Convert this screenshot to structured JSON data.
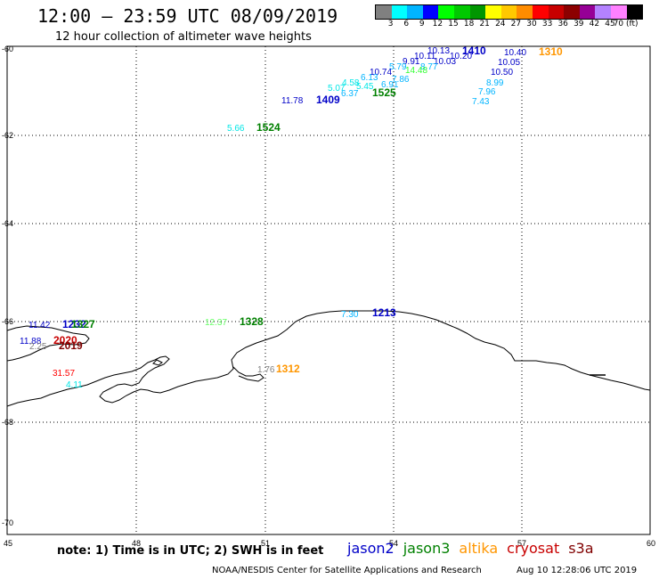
{
  "header": {
    "title": "12:00 – 23:59 UTC 08/09/2019",
    "subtitle": "12 hour collection of altimeter wave heights"
  },
  "scale": {
    "colors": [
      "#808080",
      "#00ffff",
      "#00b4ff",
      "#0000ff",
      "#00ff00",
      "#00c800",
      "#009600",
      "#ffff00",
      "#ffc800",
      "#ff8c00",
      "#ff0000",
      "#c80000",
      "#8c0000",
      "#960096",
      "#b482ff",
      "#ff80ff",
      "#000000"
    ],
    "labels": [
      "3",
      "6",
      "9",
      "12",
      "15",
      "18",
      "21",
      "24",
      "27",
      "30",
      "33",
      "36",
      "39",
      "42",
      "45",
      "70 (ft)"
    ]
  },
  "axes": {
    "lat_ticks": [
      "-60",
      "-62",
      "-64",
      "-66",
      "-68",
      "-70"
    ],
    "lon_ticks": [
      "45",
      "48",
      "51",
      "54",
      "57",
      "60"
    ]
  },
  "satellite_colors": {
    "jason2": "#0000c8",
    "jason3": "#008000",
    "altika": "#ff9600",
    "cryosat": "#c80000",
    "s3a": "#800000"
  },
  "observations": [
    {
      "value": "10.13",
      "color": "#0000c8"
    },
    {
      "value": "10.11",
      "color": "#0000c8"
    },
    {
      "value": "10.20",
      "color": "#0000c8"
    },
    {
      "value": "9.91",
      "color": "#0000c8"
    },
    {
      "value": "10.03",
      "color": "#0000c8"
    },
    {
      "value": "5.79",
      "color": "#00b4ff"
    },
    {
      "value": "8.77",
      "color": "#00b4ff"
    },
    {
      "value": "10.74",
      "color": "#0000c8"
    },
    {
      "value": "14.48",
      "color": "#33ff33"
    },
    {
      "value": "6.13",
      "color": "#00b4ff"
    },
    {
      "value": "7.86",
      "color": "#00b4ff"
    },
    {
      "value": "4.58",
      "color": "#00e6e6"
    },
    {
      "value": "6.91",
      "color": "#00b4ff"
    },
    {
      "value": "5.07",
      "color": "#00e6e6"
    },
    {
      "value": "5.45",
      "color": "#00e6e6"
    },
    {
      "value": "6.37",
      "color": "#00b4ff"
    },
    {
      "value": "11.78",
      "color": "#0000c8"
    },
    {
      "value": "10.40",
      "color": "#0000c8"
    },
    {
      "value": "10.05",
      "color": "#0000c8"
    },
    {
      "value": "10.50",
      "color": "#0000c8"
    },
    {
      "value": "8.99",
      "color": "#00b4ff"
    },
    {
      "value": "7.96",
      "color": "#00b4ff"
    },
    {
      "value": "7.43",
      "color": "#00b4ff"
    },
    {
      "value": "5.66",
      "color": "#00e6e6"
    },
    {
      "value": "7.30",
      "color": "#00b4ff"
    },
    {
      "value": "12.37",
      "color": "#66ff66"
    },
    {
      "value": "1.76",
      "color": "#808080"
    },
    {
      "value": "11.42",
      "color": "#0000c8"
    },
    {
      "value": "11.88",
      "color": "#0000c8"
    },
    {
      "value": "2.25",
      "color": "#808080"
    },
    {
      "value": "31.57",
      "color": "#ff0000"
    },
    {
      "value": "4.11",
      "color": "#00e6e6"
    }
  ],
  "time_labels": [
    {
      "text": "1410",
      "color": "#0000c8"
    },
    {
      "text": "1310",
      "color": "#ff9600"
    },
    {
      "text": "1409",
      "color": "#0000c8"
    },
    {
      "text": "1525",
      "color": "#008000"
    },
    {
      "text": "1524",
      "color": "#008000"
    },
    {
      "text": "1213",
      "color": "#0000c8"
    },
    {
      "text": "1328",
      "color": "#008000"
    },
    {
      "text": "1312",
      "color": "#ff9600"
    },
    {
      "text": "1232",
      "color": "#0000c8"
    },
    {
      "text": "1327",
      "color": "#008000"
    },
    {
      "text": "2020",
      "color": "#c80000"
    },
    {
      "text": "2019",
      "color": "#800000"
    }
  ],
  "footer": {
    "note": "note: 1) Time is in UTC; 2) SWH is in feet",
    "legend": [
      "jason2",
      "jason3",
      "altika",
      "cryosat",
      "s3a"
    ],
    "credit": "NOAA/NESDIS Center for Satellite Applications and Research",
    "credit_date": "Aug 10 12:28:06 UTC 2019"
  }
}
